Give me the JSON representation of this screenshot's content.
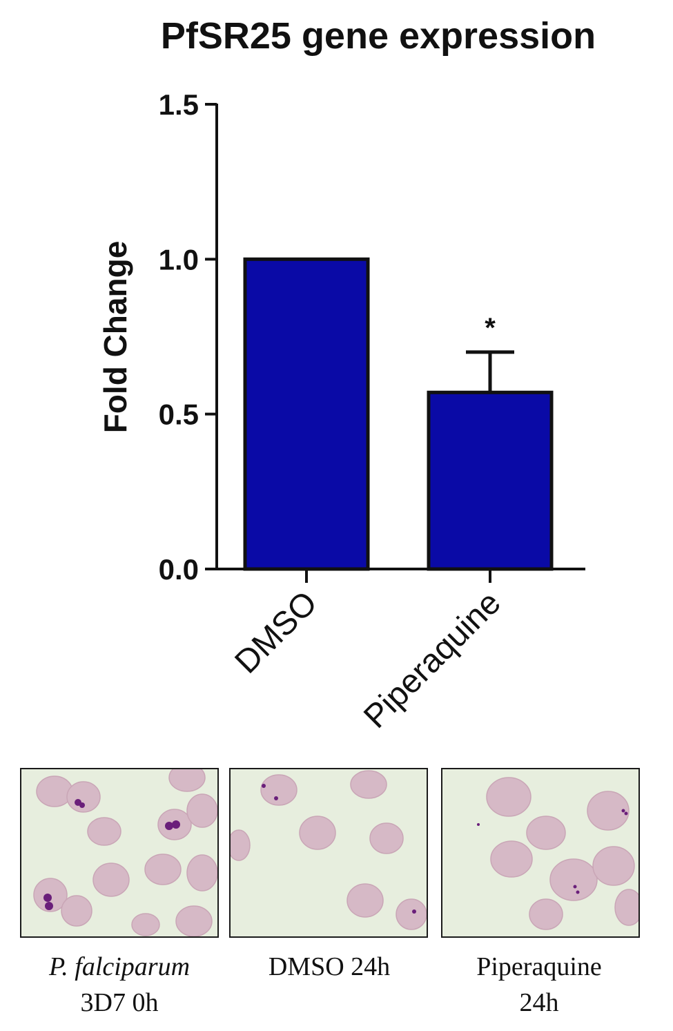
{
  "chart_data": {
    "type": "bar",
    "title": "PfSR25 gene expression",
    "ylabel": "Fold Change",
    "xlabel": "",
    "categories": [
      "DMSO",
      "Piperaquine"
    ],
    "values": [
      1.0,
      0.57
    ],
    "error_upper": [
      0.0,
      0.13
    ],
    "significance": [
      "",
      "*"
    ],
    "ylim": [
      0,
      1.5
    ],
    "yticks": [
      "0.0",
      "0.5",
      "1.0",
      "1.5"
    ],
    "ytick_values": [
      0.0,
      0.5,
      1.0,
      1.5
    ],
    "bar_color": "#0a0aa6",
    "grid": false
  },
  "panels": [
    {
      "name": "panel-3d7-0h",
      "caption_italic": "P. falciparum",
      "caption_line2": "3D7 0h"
    },
    {
      "name": "panel-dmso-24h",
      "caption_line1": "DMSO 24h"
    },
    {
      "name": "panel-piperaquine-24h",
      "caption_line1": "Piperaquine",
      "caption_line2": "24h"
    }
  ],
  "colors": {
    "panel_background": "#e7eede",
    "rbc_fill": "#d6b9c6",
    "parasite": "#6a1f7a"
  }
}
